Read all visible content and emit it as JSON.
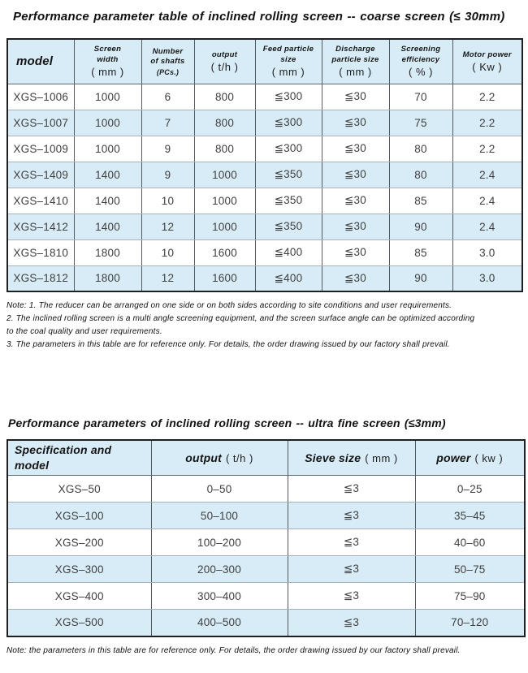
{
  "colors": {
    "accent_blue": "#d8ecf7",
    "outer_border": "#1f1f1f",
    "vertical_border": "#545b60",
    "horizontal_border": "#a6b2b9",
    "body_text": "#3f3f3f"
  },
  "table1": {
    "title": "Performance parameter table of inclined rolling screen -- coarse screen (≤ 30mm)",
    "columns": [
      {
        "lines": [
          "model"
        ],
        "unit": "",
        "cls": "head-big head-left"
      },
      {
        "lines": [
          "Screen",
          "width"
        ],
        "unit": "( mm )"
      },
      {
        "lines": [
          "Number",
          "of shafts"
        ],
        "unit": "(PCs.)",
        "unit_cls": "unit-small"
      },
      {
        "lines": [
          "output"
        ],
        "unit": "( t/h )"
      },
      {
        "lines": [
          "Feed particle",
          "size"
        ],
        "unit": "( mm )"
      },
      {
        "lines": [
          "Discharge",
          "particle size"
        ],
        "unit": "( mm )"
      },
      {
        "lines": [
          "Screening",
          "efficiency"
        ],
        "unit": "( % )"
      },
      {
        "lines": [
          "Motor power"
        ],
        "unit": "( Kw )"
      }
    ],
    "rows": [
      [
        "XGS–1006",
        "1000",
        "6",
        "800",
        "≦300",
        "≦30",
        "70",
        "2.2"
      ],
      [
        "XGS–1007",
        "1000",
        "7",
        "800",
        "≦300",
        "≦30",
        "75",
        "2.2"
      ],
      [
        "XGS–1009",
        "1000",
        "9",
        "800",
        "≦300",
        "≦30",
        "80",
        "2.2"
      ],
      [
        "XGS–1409",
        "1400",
        "9",
        "1000",
        "≦350",
        "≦30",
        "80",
        "2.4"
      ],
      [
        "XGS–1410",
        "1400",
        "10",
        "1000",
        "≦350",
        "≦30",
        "85",
        "2.4"
      ],
      [
        "XGS–1412",
        "1400",
        "12",
        "1000",
        "≦350",
        "≦30",
        "90",
        "2.4"
      ],
      [
        "XGS–1810",
        "1800",
        "10",
        "1600",
        "≦400",
        "≦30",
        "85",
        "3.0"
      ],
      [
        "XGS–1812",
        "1800",
        "12",
        "1600",
        "≦400",
        "≦30",
        "90",
        "3.0"
      ]
    ],
    "notes": [
      "Note: 1. The reducer can be arranged on one side or on both sides according to site conditions and user requirements.",
      "2. The inclined rolling screen is a multi angle screening equipment, and the screen surface angle can be optimized according",
      "to the coal quality and user requirements.",
      "3. The parameters in this table are for reference only. For details, the order drawing issued by our factory shall prevail."
    ]
  },
  "table2": {
    "title": "Performance parameters of inclined rolling screen -- ultra fine screen (≤3mm)",
    "columns": [
      {
        "lines": [
          "Specification and model"
        ],
        "unit": "",
        "cls": "head-big head-left"
      },
      {
        "lines": [
          "output"
        ],
        "unit": "( t/h )",
        "cls": "head-big",
        "inline_unit": true
      },
      {
        "lines": [
          "Sieve size"
        ],
        "unit": "( mm )",
        "cls": "head-big",
        "inline_unit": true
      },
      {
        "lines": [
          "power"
        ],
        "unit": "( kw )",
        "cls": "head-big",
        "inline_unit": true
      }
    ],
    "rows": [
      [
        "XGS–50",
        "0–50",
        "≦3",
        "0–25"
      ],
      [
        "XGS–100",
        "50–100",
        "≦3",
        "35–45"
      ],
      [
        "XGS–200",
        "100–200",
        "≦3",
        "40–60"
      ],
      [
        "XGS–300",
        "200–300",
        "≦3",
        "50–75"
      ],
      [
        "XGS–400",
        "300–400",
        "≦3",
        "75–90"
      ],
      [
        "XGS–500",
        "400–500",
        "≦3",
        "70–120"
      ]
    ],
    "note": "Note: the parameters in this table are for reference only. For details, the order drawing issued by our factory shall prevail."
  }
}
